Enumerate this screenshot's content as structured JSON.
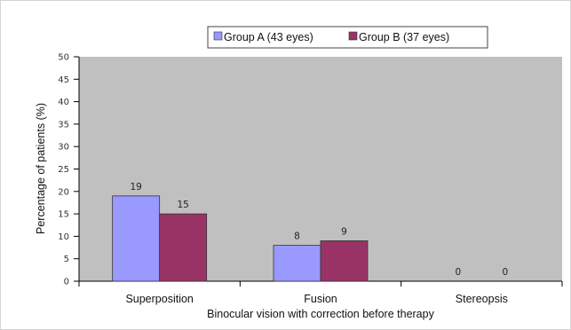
{
  "chart_data": {
    "type": "bar",
    "categories": [
      "Superposition",
      "Fusion",
      "Stereopsis"
    ],
    "series": [
      {
        "name": "Group A (43 eyes)",
        "values": [
          19,
          8,
          0
        ],
        "color": "#9999ff"
      },
      {
        "name": "Group B (37 eyes)",
        "values": [
          15,
          9,
          0
        ],
        "color": "#993366"
      }
    ],
    "data_labels": [
      [
        "19",
        "8",
        "0"
      ],
      [
        "15",
        "9",
        "0"
      ]
    ],
    "xlabel": "Binocular vision with correction before therapy",
    "ylabel": "Percentage of patients (%)",
    "ylim": [
      0,
      50
    ],
    "yticks": [
      0,
      5,
      10,
      15,
      20,
      25,
      30,
      35,
      40,
      45,
      50
    ],
    "plot_background": "#c0c0c0",
    "grid": false,
    "legend_position": "top"
  }
}
